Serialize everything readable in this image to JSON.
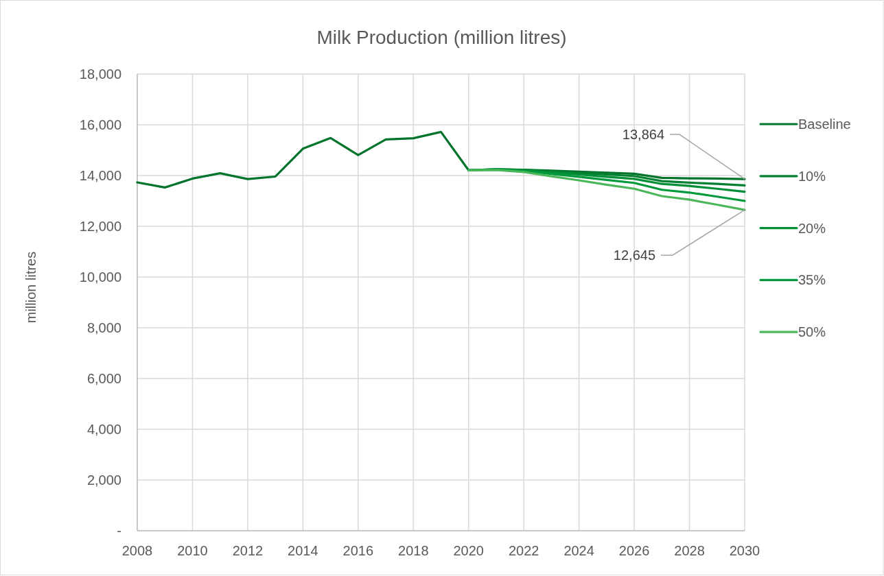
{
  "chart_data": {
    "type": "line",
    "title": "Milk Production (million litres)",
    "ylabel": "million litres",
    "xlim": [
      2008,
      2030
    ],
    "xticks": [
      2008,
      2010,
      2012,
      2014,
      2016,
      2018,
      2020,
      2022,
      2024,
      2026,
      2028,
      2030
    ],
    "ylim": [
      0,
      18000
    ],
    "yticks": [
      {
        "value": 0,
        "label": "-"
      },
      {
        "value": 2000,
        "label": "2,000"
      },
      {
        "value": 4000,
        "label": "4,000"
      },
      {
        "value": 6000,
        "label": "6,000"
      },
      {
        "value": 8000,
        "label": "8,000"
      },
      {
        "value": 10000,
        "label": "10,000"
      },
      {
        "value": 12000,
        "label": "12,000"
      },
      {
        "value": 14000,
        "label": "14,000"
      },
      {
        "value": 16000,
        "label": "16,000"
      },
      {
        "value": 18000,
        "label": "18,000"
      }
    ],
    "grid": true,
    "legend": "right",
    "line_style": "solid",
    "series": [
      {
        "name": "Baseline",
        "color": "#00742b",
        "x": [
          2008,
          2009,
          2010,
          2011,
          2012,
          2013,
          2014,
          2015,
          2016,
          2017,
          2018,
          2019,
          2020,
          2021,
          2022,
          2023,
          2024,
          2025,
          2026,
          2027,
          2028,
          2029,
          2030
        ],
        "values": [
          13730,
          13530,
          13880,
          14090,
          13860,
          13960,
          15060,
          15480,
          14810,
          15420,
          15470,
          15720,
          14210,
          14250,
          14230,
          14190,
          14150,
          14110,
          14070,
          13910,
          13890,
          13880,
          13864
        ]
      },
      {
        "name": "10%",
        "color": "#008030",
        "x": [
          2020,
          2021,
          2022,
          2023,
          2024,
          2025,
          2026,
          2027,
          2028,
          2029,
          2030
        ],
        "values": [
          14210,
          14250,
          14220,
          14160,
          14100,
          14040,
          13980,
          13780,
          13720,
          13670,
          13610
        ]
      },
      {
        "name": "20%",
        "color": "#008f36",
        "x": [
          2020,
          2021,
          2022,
          2023,
          2024,
          2025,
          2026,
          2027,
          2028,
          2029,
          2030
        ],
        "values": [
          14210,
          14240,
          14210,
          14120,
          14040,
          13950,
          13870,
          13670,
          13590,
          13480,
          13360
        ]
      },
      {
        "name": "35%",
        "color": "#009a3c",
        "x": [
          2020,
          2021,
          2022,
          2023,
          2024,
          2025,
          2026,
          2027,
          2028,
          2029,
          2030
        ],
        "values": [
          14210,
          14230,
          14180,
          14060,
          13950,
          13830,
          13710,
          13440,
          13330,
          13170,
          13000
        ]
      },
      {
        "name": "50%",
        "color": "#4bb75a",
        "x": [
          2020,
          2021,
          2022,
          2023,
          2024,
          2025,
          2026,
          2027,
          2028,
          2029,
          2030
        ],
        "values": [
          14210,
          14220,
          14140,
          13970,
          13810,
          13640,
          13480,
          13190,
          13050,
          12850,
          12645
        ]
      }
    ],
    "annotations": [
      {
        "text": "13,864",
        "x": 2030,
        "y": 13864
      },
      {
        "text": "12,645",
        "x": 2030,
        "y": 12645
      }
    ]
  }
}
